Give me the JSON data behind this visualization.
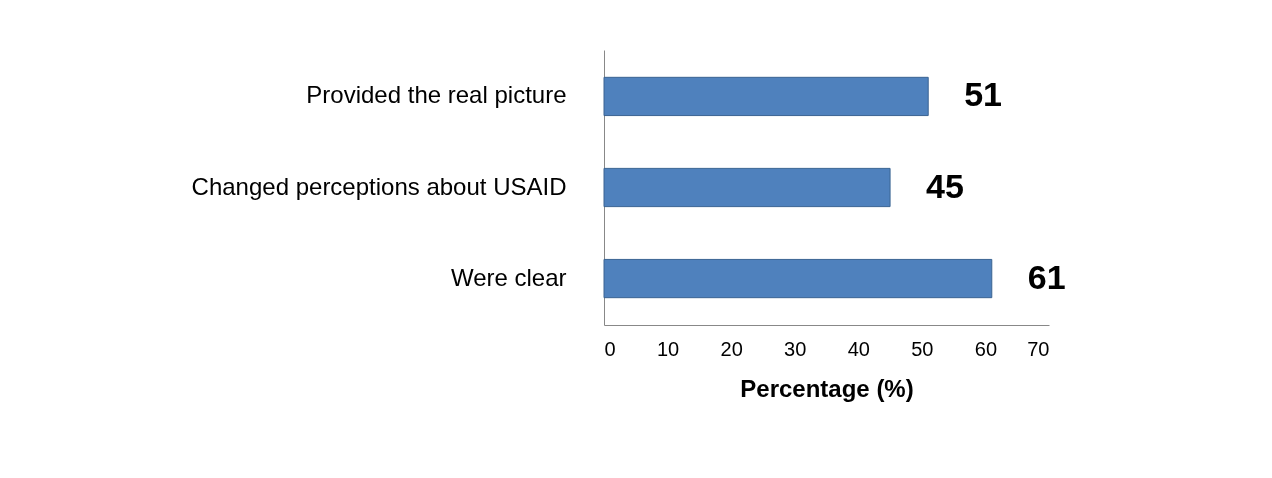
{
  "chart_data": {
    "type": "bar",
    "orientation": "horizontal",
    "xlabel": "Percentage (%)",
    "categories": [
      "Provided the real picture",
      "Changed perceptions about USAID",
      "Were clear"
    ],
    "values": [
      51,
      45,
      61
    ],
    "color": "#4f81bd",
    "xlim": [
      0,
      70
    ],
    "xticks": [
      0,
      10,
      20,
      30,
      40,
      50,
      60,
      70
    ],
    "grid": false,
    "data_labels": true
  }
}
